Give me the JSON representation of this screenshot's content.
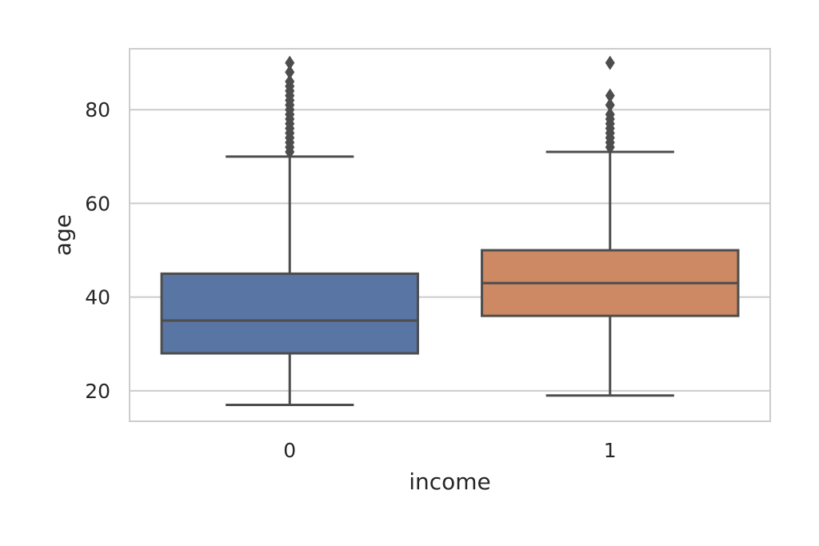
{
  "chart_data": {
    "type": "box",
    "title": "",
    "xlabel": "income",
    "ylabel": "age",
    "categories": [
      "0",
      "1"
    ],
    "ylim": [
      13.5,
      93.0
    ],
    "yticks": [
      20,
      40,
      60,
      80
    ],
    "grid": "horizontal",
    "boxes": [
      {
        "category": "0",
        "color": "#5875a4",
        "whisker_low": 17,
        "q1": 28,
        "median": 35,
        "q3": 45,
        "whisker_high": 70,
        "outliers": [
          71,
          72,
          73,
          74,
          75,
          76,
          77,
          78,
          79,
          80,
          81,
          82,
          83,
          84,
          85,
          86,
          88,
          90
        ]
      },
      {
        "category": "1",
        "color": "#cc8963",
        "whisker_low": 19,
        "q1": 36,
        "median": 43,
        "q3": 50,
        "whisker_high": 71,
        "outliers": [
          72,
          73,
          74,
          75,
          76,
          77,
          78,
          79,
          81,
          83,
          90
        ]
      }
    ],
    "colors": {
      "edge": "#4d4d4d",
      "grid": "#cccccc",
      "frame": "#cccccc"
    }
  }
}
